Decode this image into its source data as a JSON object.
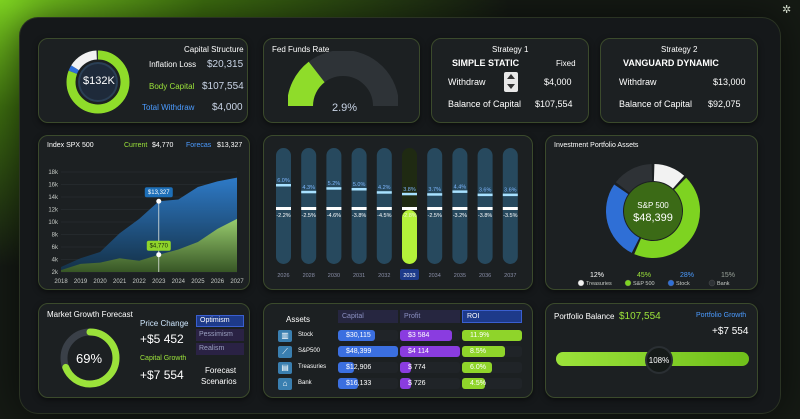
{
  "capital": {
    "title": "Capital Structure",
    "donut_label": "$132K",
    "rows": [
      {
        "label": "Inflation Loss",
        "value": "$20,315"
      },
      {
        "label": "Body Capital",
        "value": "$107,554"
      },
      {
        "label": "Total Withdraw",
        "value": "$4,000"
      }
    ]
  },
  "fed": {
    "title": "Fed Funds Rate",
    "value": "2.9%",
    "fill_fraction": 0.29
  },
  "s1": {
    "title": "Strategy 1",
    "name": "SIMPLE STATIC",
    "mode": "Fixed",
    "withdraw_label": "Withdraw",
    "withdraw_value": "$4,000",
    "balance_label": "Balance of Capital",
    "balance_value": "$107,554"
  },
  "s2": {
    "title": "Strategy 2",
    "name": "VANGUARD DYNAMIC",
    "withdraw_label": "Withdraw",
    "withdraw_value": "$13,000",
    "balance_label": "Balance of Capital",
    "balance_value": "$92,075"
  },
  "spx": {
    "title": "Index SPX 500",
    "current_label": "Current",
    "current_value": "$4,770",
    "forecast_label": "Forecas",
    "forecast_value": "$13,327",
    "callout_forecast": "$13,327",
    "callout_current": "$4,770"
  },
  "chart_data": [
    {
      "type": "area",
      "title": "Index SPX 500",
      "x": [
        2018,
        2019,
        2020,
        2021,
        2022,
        2023,
        2024,
        2025,
        2026,
        2027
      ],
      "ylim": [
        2000,
        18000
      ],
      "yticks": [
        "2k",
        "4k",
        "6k",
        "8k",
        "10k",
        "12k",
        "14k",
        "16k",
        "18k"
      ],
      "series": [
        {
          "name": "Forecas",
          "values": [
            2800,
            4200,
            5200,
            8200,
            10500,
            13327,
            13600,
            15600,
            16500,
            17100
          ]
        },
        {
          "name": "Current",
          "values": [
            2300,
            3300,
            3500,
            4200,
            3800,
            4770,
            5600,
            6800,
            8900,
            10500
          ]
        }
      ]
    },
    {
      "type": "bar",
      "categories": [
        "2026",
        "2028",
        "2030",
        "2031",
        "2032",
        "2033",
        "2034",
        "2035",
        "2036",
        "2037"
      ],
      "series": [
        {
          "name": "positive",
          "values": [
            6.0,
            4.3,
            5.2,
            5.0,
            4.2,
            3.8,
            3.7,
            4.4,
            3.6,
            3.6
          ]
        },
        {
          "name": "negative",
          "values": [
            -2.2,
            -2.5,
            -4.6,
            -3.8,
            -4.5,
            -2.8,
            -2.5,
            -3.2,
            -3.8,
            -3.5
          ]
        }
      ],
      "highlight": "2033"
    },
    {
      "type": "pie",
      "title": "Investment Portfolio Assets",
      "center_label": "S&P 500",
      "center_value": "$48,399",
      "labels": [
        "Treasuries",
        "S&P 500",
        "Stock",
        "Bank"
      ],
      "values": [
        12,
        45,
        28,
        15
      ],
      "percent_labels": [
        "12%",
        "45%",
        "28%",
        "15%"
      ],
      "colors": [
        "#f2f2f2",
        "#7ed321",
        "#2f6fd6",
        "#2e3236"
      ]
    }
  ],
  "market": {
    "title": "Market Growth Forecast",
    "percent": "69%",
    "fraction": 0.69,
    "price_label": "Price Change",
    "price_value": "+$5 452",
    "capital_label": "Capital Growth",
    "capital_value": "+$7 554",
    "scenarios": [
      "Optimism",
      "Pessimism",
      "Realism"
    ],
    "scenarios_label_1": "Forecast",
    "scenarios_label_2": "Scenarios"
  },
  "assets": {
    "title": "Assets",
    "headers": [
      "Capital",
      "Profit",
      "ROI"
    ],
    "rows": [
      {
        "name": "Stock",
        "capital": "$30,115",
        "profit": "$3 584",
        "roi": "11.9%",
        "cap_frac": 0.62,
        "pro_frac": 0.87,
        "roi_frac": 1.0
      },
      {
        "name": "S&P500",
        "capital": "$48,399",
        "profit": "$4 114",
        "roi": "8.5%",
        "cap_frac": 1.0,
        "pro_frac": 1.0,
        "roi_frac": 0.72
      },
      {
        "name": "Treasuries",
        "capital": "$12,906",
        "profit": "$ 774",
        "roi": "6.0%",
        "cap_frac": 0.27,
        "pro_frac": 0.19,
        "roi_frac": 0.5
      },
      {
        "name": "Bank",
        "capital": "$16,133",
        "profit": "$ 726",
        "roi": "4.5%",
        "cap_frac": 0.33,
        "pro_frac": 0.18,
        "roi_frac": 0.38
      }
    ]
  },
  "balance": {
    "title": "Portfolio Balance",
    "value": "$107,554",
    "growth_label": "Portfolio Growth",
    "growth_value": "+$7 554",
    "percent": "108%",
    "fraction": 1.0
  },
  "colors": {
    "accent": "#9be23a",
    "blue": "#4b9bff",
    "card": "#1c2022"
  }
}
